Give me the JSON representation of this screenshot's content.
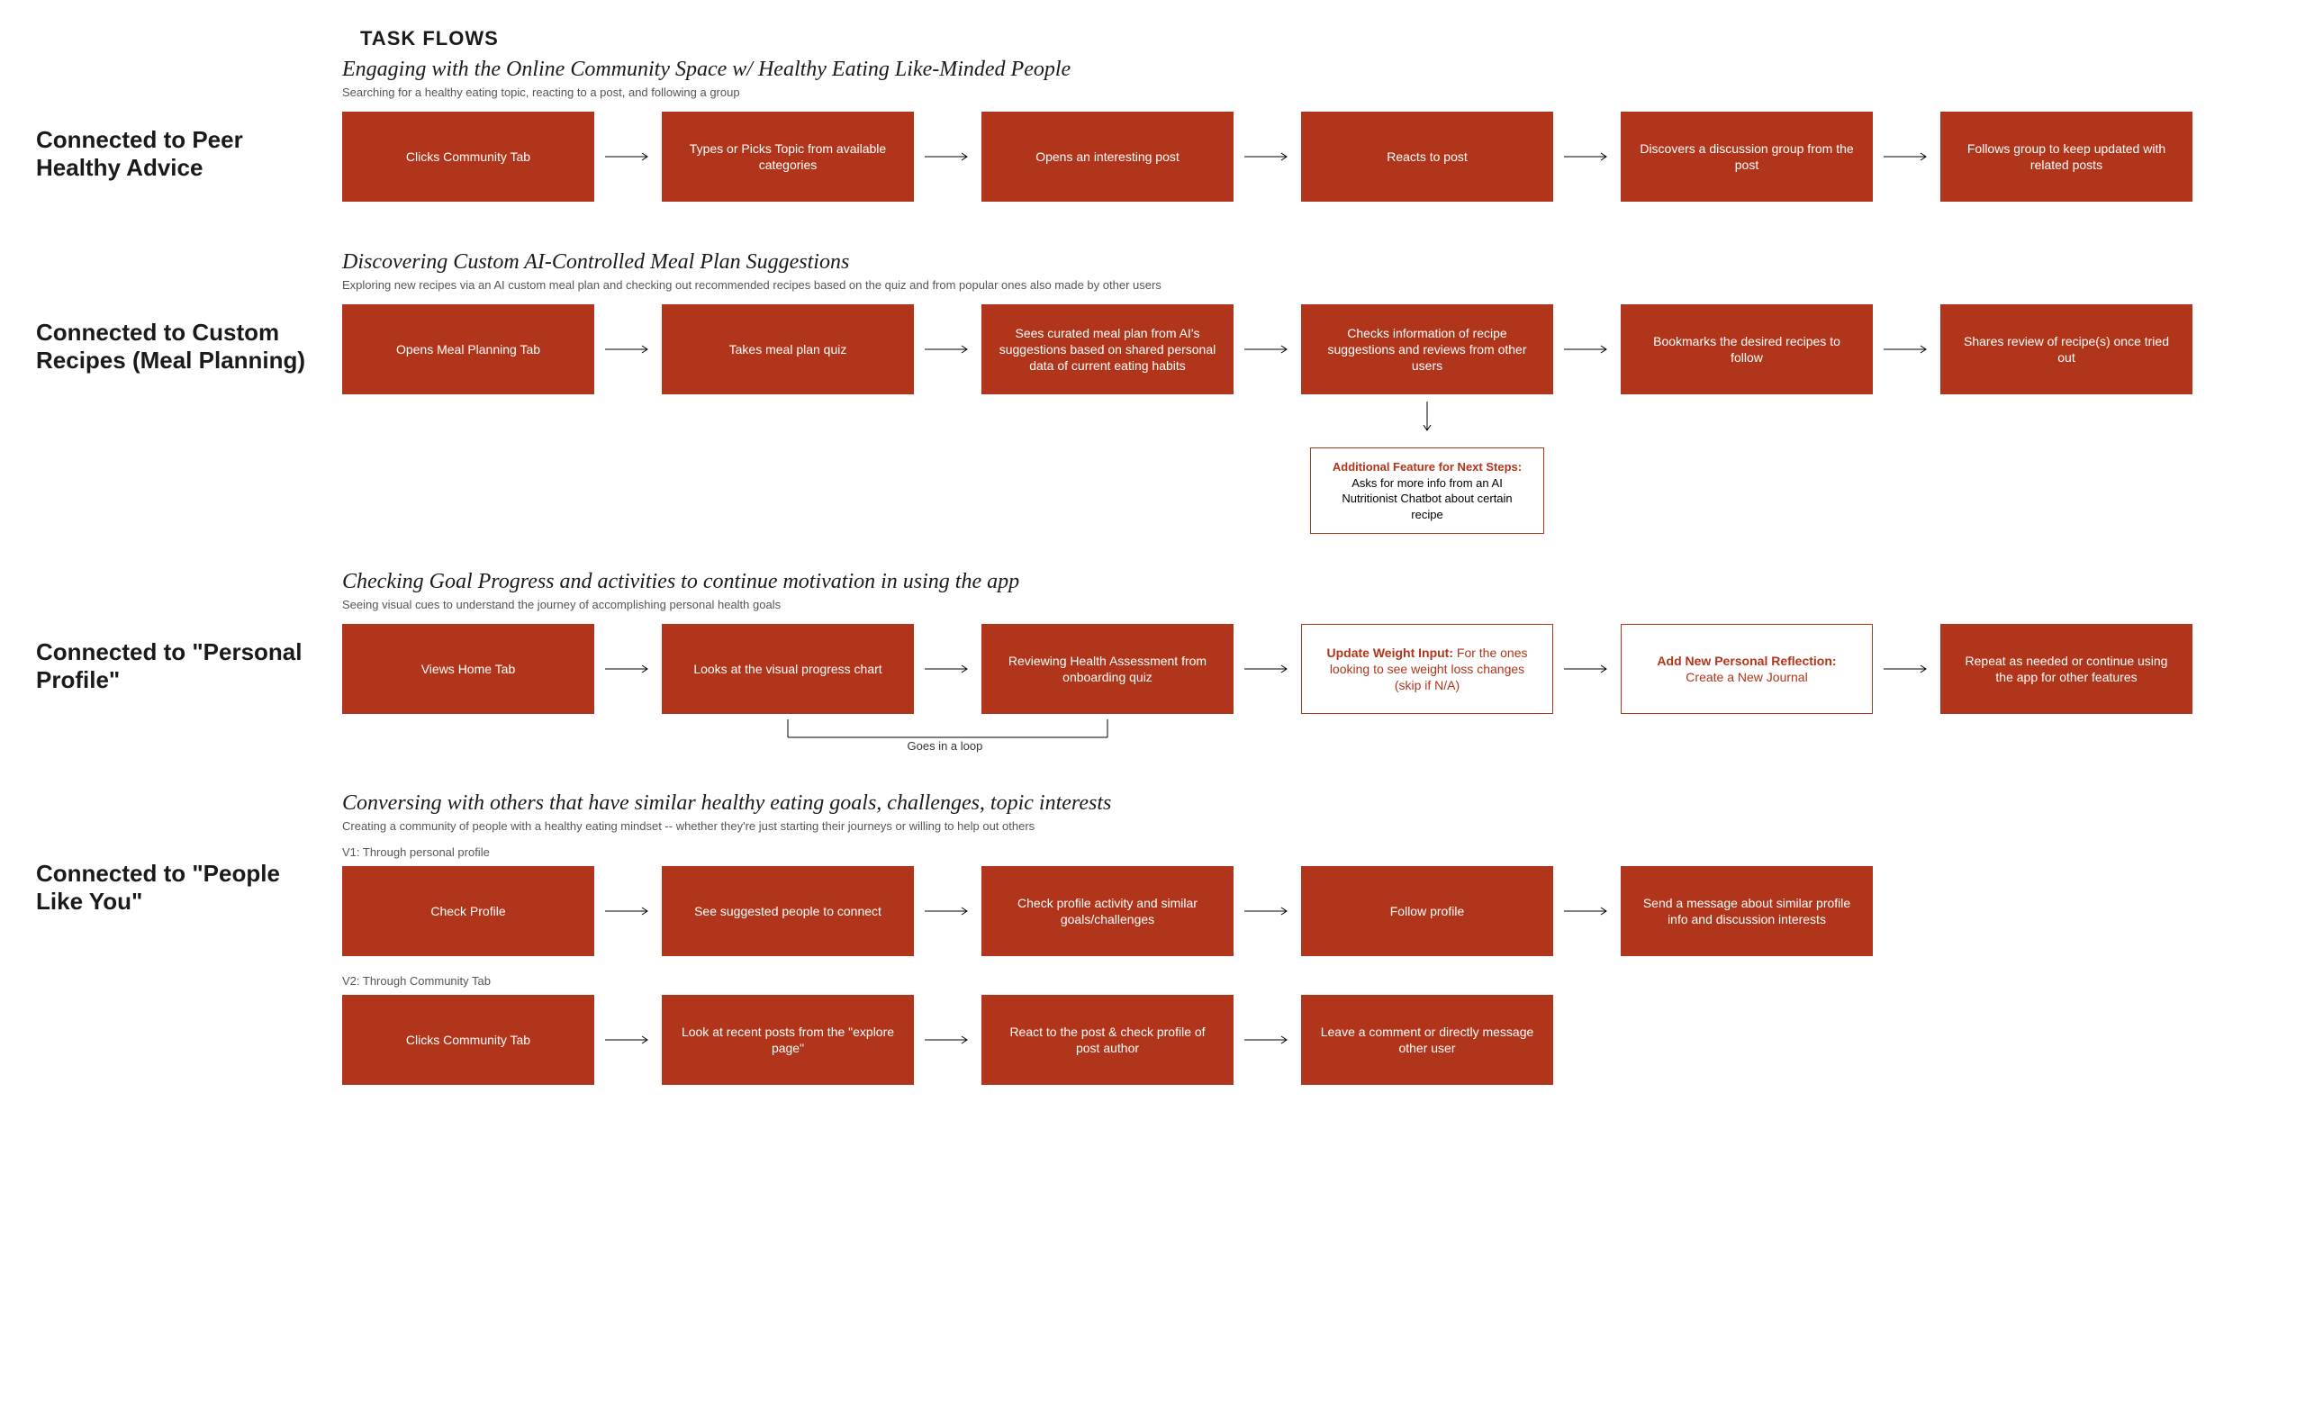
{
  "colors": {
    "box_fill": "#b1351a",
    "box_text": "#ffffff",
    "outline_border": "#b1351a",
    "outline_text": "#b1351a",
    "arrow": "#000000",
    "background": "#ffffff",
    "title_text": "#1a1a1a",
    "subtitle_text": "#555555"
  },
  "type": "flowchart",
  "main_title": "TASK FLOWS",
  "sections": [
    {
      "label": "Connected to Peer Healthy Advice",
      "title": "Engaging with the Online Community Space w/ Healthy Eating Like-Minded People",
      "subtitle": "Searching for a  healthy eating topic, reacting to a post, and following a group",
      "steps": [
        "Clicks Community Tab",
        "Types or Picks Topic from available categories",
        "Opens an interesting post",
        "Reacts to post",
        "Discovers a discussion group from the post",
        "Follows group to keep updated with related posts"
      ]
    },
    {
      "label": "Connected to Custom Recipes (Meal Planning)",
      "title": "Discovering Custom AI-Controlled Meal Plan Suggestions",
      "subtitle": "Exploring new recipes via an AI custom meal plan and checking out recommended recipes based on the quiz and from popular ones also made by other users",
      "steps": [
        "Opens Meal Planning Tab",
        "Takes meal plan quiz",
        "Sees curated meal plan from AI's suggestions based on shared personal data of current eating habits",
        "Checks information of recipe suggestions and reviews from other users",
        "Bookmarks the desired recipes to follow",
        "Shares review of recipe(s) once tried out"
      ],
      "annotation": {
        "lead": "Additional Feature for Next Steps:",
        "rest": " Asks for more info from an AI Nutritionist Chatbot about certain recipe"
      }
    },
    {
      "label": "Connected to \"Personal Profile\"",
      "title": "Checking Goal Progress and activities  to continue motivation in using the app",
      "subtitle": "Seeing visual cues to understand the journey of accomplishing personal health goals",
      "steps_mixed": [
        {
          "kind": "fill",
          "text": "Views Home Tab"
        },
        {
          "kind": "fill",
          "text": "Looks at the visual progress chart"
        },
        {
          "kind": "fill",
          "text": "Reviewing Health Assessment from onboarding quiz"
        },
        {
          "kind": "outline",
          "lead": "Update Weight Input:",
          "rest": " For the ones looking to see weight loss changes\n(skip if N/A)"
        },
        {
          "kind": "outline",
          "lead": "Add New Personal Reflection:",
          "rest": " Create a New Journal"
        },
        {
          "kind": "fill",
          "text": "Repeat as needed or continue using the app for other features"
        }
      ],
      "loop_label": "Goes in a loop"
    },
    {
      "label": "Connected to \"People Like You\"",
      "title": "Conversing with others that have similar healthy eating goals, challenges, topic interests",
      "subtitle": "Creating a community of people with a healthy eating mindset -- whether they're just starting their journeys or willing to help out others",
      "version1_label": "V1: Through personal profile",
      "version1_steps": [
        "Check Profile",
        "See suggested people to connect",
        "Check profile activity and similar goals/challenges",
        "Follow profile",
        "Send a message about similar profile info and discussion interests"
      ],
      "version2_label": "V2: Through Community Tab",
      "version2_steps": [
        "Clicks Community Tab",
        "Look at recent posts from the \"explore page\"",
        "React to the post & check profile of post author",
        "Leave a comment or directly message other user"
      ]
    }
  ]
}
